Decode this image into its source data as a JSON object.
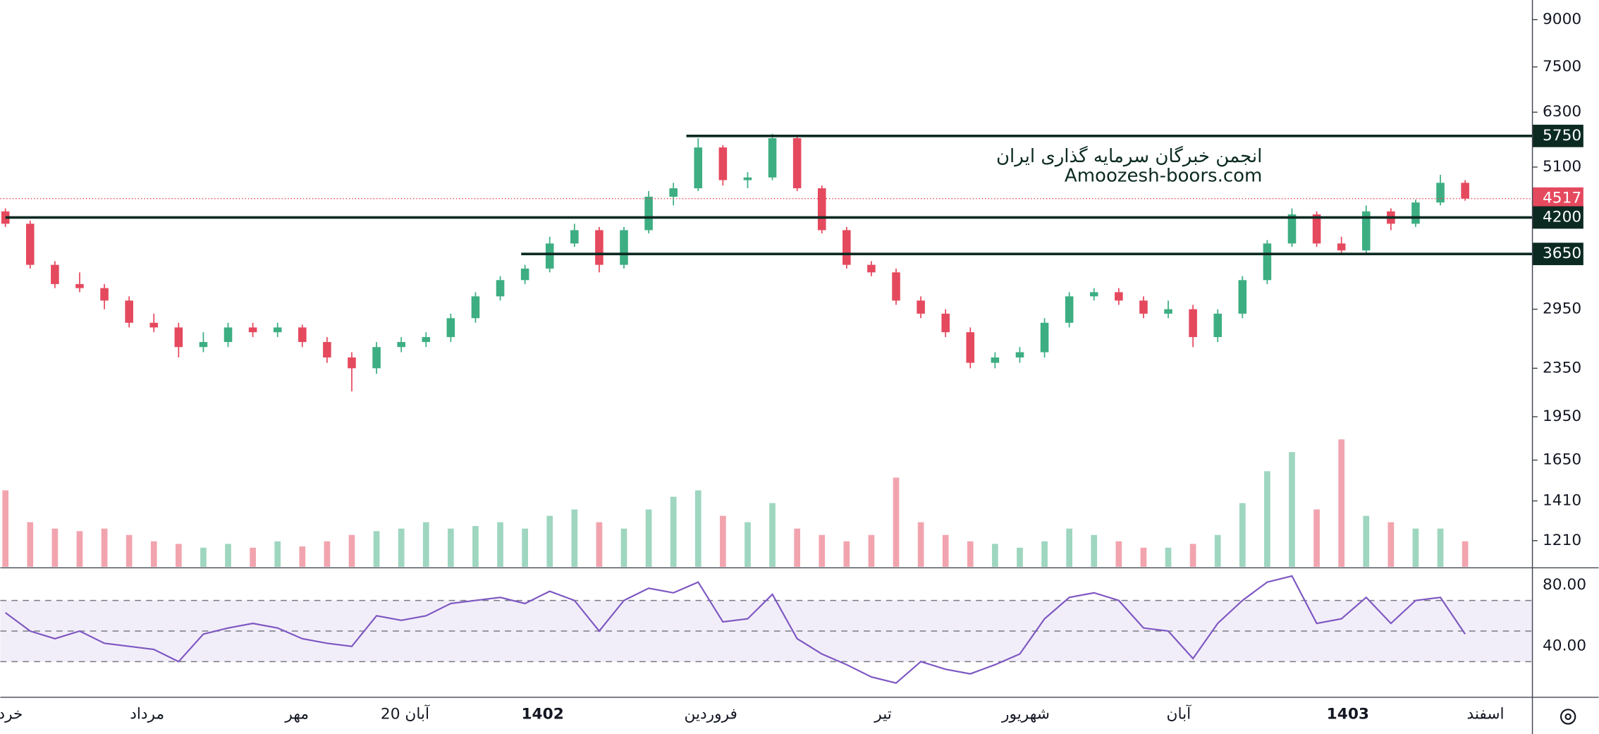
{
  "chart_data": {
    "type": "candlestick",
    "watermark": [
      "انجمن خبرگان سرمایه گذاری ایران",
      "Amoozesh-boors.com"
    ],
    "x_labels": [
      "خرد",
      "مرداد",
      "مهر",
      "20 آبان",
      "1402",
      "فروردین",
      "تیر",
      "شهریور",
      "آبان",
      "1403",
      "اسفند"
    ],
    "log_scale": true,
    "ylim": [
      1094,
      9705
    ],
    "yticks": [
      9000,
      7500,
      6300,
      5100,
      2950,
      2350,
      1950,
      1650,
      1410,
      1210
    ],
    "up_color": "#3dae82",
    "down_color": "#e5495e",
    "ohlc": [
      [
        4300,
        4350,
        4050,
        4100
      ],
      [
        4100,
        4150,
        3450,
        3500
      ],
      [
        3500,
        3550,
        3200,
        3250
      ],
      [
        3250,
        3400,
        3150,
        3200
      ],
      [
        3200,
        3250,
        2950,
        3050
      ],
      [
        3050,
        3100,
        2750,
        2800
      ],
      [
        2800,
        2900,
        2700,
        2750
      ],
      [
        2750,
        2800,
        2450,
        2550
      ],
      [
        2550,
        2700,
        2500,
        2600
      ],
      [
        2600,
        2800,
        2550,
        2750
      ],
      [
        2750,
        2800,
        2650,
        2700
      ],
      [
        2700,
        2800,
        2650,
        2750
      ],
      [
        2750,
        2780,
        2550,
        2600
      ],
      [
        2600,
        2650,
        2400,
        2450
      ],
      [
        2450,
        2500,
        2150,
        2350
      ],
      [
        2350,
        2600,
        2300,
        2550
      ],
      [
        2550,
        2650,
        2500,
        2600
      ],
      [
        2600,
        2700,
        2550,
        2650
      ],
      [
        2650,
        2900,
        2600,
        2850
      ],
      [
        2850,
        3150,
        2800,
        3100
      ],
      [
        3100,
        3350,
        3050,
        3300
      ],
      [
        3300,
        3500,
        3250,
        3450
      ],
      [
        3450,
        3900,
        3400,
        3800
      ],
      [
        3800,
        4100,
        3750,
        4000
      ],
      [
        4000,
        4050,
        3400,
        3500
      ],
      [
        3500,
        4050,
        3450,
        4000
      ],
      [
        4000,
        4650,
        3950,
        4550
      ],
      [
        4550,
        4800,
        4400,
        4700
      ],
      [
        4700,
        5700,
        4650,
        5500
      ],
      [
        5500,
        5550,
        4750,
        4850
      ],
      [
        4850,
        5000,
        4700,
        4900
      ],
      [
        4900,
        5800,
        4850,
        5700
      ],
      [
        5700,
        5750,
        4650,
        4700
      ],
      [
        4700,
        4750,
        3950,
        4000
      ],
      [
        4000,
        4050,
        3450,
        3500
      ],
      [
        3500,
        3550,
        3350,
        3400
      ],
      [
        3400,
        3450,
        3000,
        3050
      ],
      [
        3050,
        3100,
        2850,
        2900
      ],
      [
        2900,
        2950,
        2650,
        2700
      ],
      [
        2700,
        2750,
        2350,
        2400
      ],
      [
        2400,
        2500,
        2350,
        2450
      ],
      [
        2450,
        2550,
        2400,
        2500
      ],
      [
        2500,
        2850,
        2450,
        2800
      ],
      [
        2800,
        3150,
        2750,
        3100
      ],
      [
        3100,
        3200,
        3050,
        3150
      ],
      [
        3150,
        3200,
        3000,
        3050
      ],
      [
        3050,
        3100,
        2850,
        2900
      ],
      [
        2900,
        3050,
        2850,
        2950
      ],
      [
        2950,
        3000,
        2550,
        2650
      ],
      [
        2650,
        2950,
        2600,
        2900
      ],
      [
        2900,
        3350,
        2850,
        3300
      ],
      [
        3300,
        3850,
        3250,
        3800
      ],
      [
        3800,
        4350,
        3750,
        4250
      ],
      [
        4250,
        4300,
        3750,
        3800
      ],
      [
        3800,
        3900,
        3650,
        3700
      ],
      [
        3700,
        4400,
        3650,
        4300
      ],
      [
        4300,
        4350,
        4000,
        4100
      ],
      [
        4100,
        4500,
        4050,
        4450
      ],
      [
        4450,
        4950,
        4400,
        4800
      ],
      [
        4800,
        4850,
        4480,
        4517
      ]
    ],
    "volume": [
      60,
      35,
      30,
      28,
      30,
      25,
      20,
      18,
      15,
      18,
      15,
      20,
      16,
      20,
      25,
      28,
      30,
      35,
      30,
      32,
      35,
      30,
      40,
      45,
      35,
      30,
      45,
      55,
      60,
      40,
      35,
      50,
      30,
      25,
      20,
      25,
      70,
      35,
      25,
      20,
      18,
      15,
      20,
      30,
      25,
      20,
      15,
      15,
      18,
      25,
      50,
      75,
      90,
      45,
      100,
      40,
      35,
      30,
      30,
      20
    ],
    "levels": [
      5750,
      4200,
      3650
    ],
    "level_color": "#0b2a22",
    "last_price": 4517,
    "last_color": "#e5495e",
    "rsi": {
      "color": "#7e57c2",
      "values": [
        62,
        50,
        45,
        50,
        42,
        40,
        38,
        30,
        48,
        52,
        55,
        52,
        45,
        42,
        40,
        60,
        57,
        60,
        68,
        70,
        72,
        68,
        76,
        70,
        50,
        70,
        78,
        75,
        82,
        56,
        58,
        74,
        45,
        35,
        28,
        20,
        16,
        30,
        25,
        22,
        28,
        35,
        58,
        72,
        75,
        70,
        52,
        50,
        32,
        55,
        70,
        82,
        86,
        55,
        58,
        72,
        55,
        70,
        72,
        48
      ],
      "ylim": [
        6.67,
        90.67
      ],
      "yticks": [
        {
          "value": 80,
          "label": "80.00"
        },
        {
          "value": 40,
          "label": "40.00"
        }
      ],
      "band": [
        30,
        70
      ],
      "mid": 50
    }
  }
}
